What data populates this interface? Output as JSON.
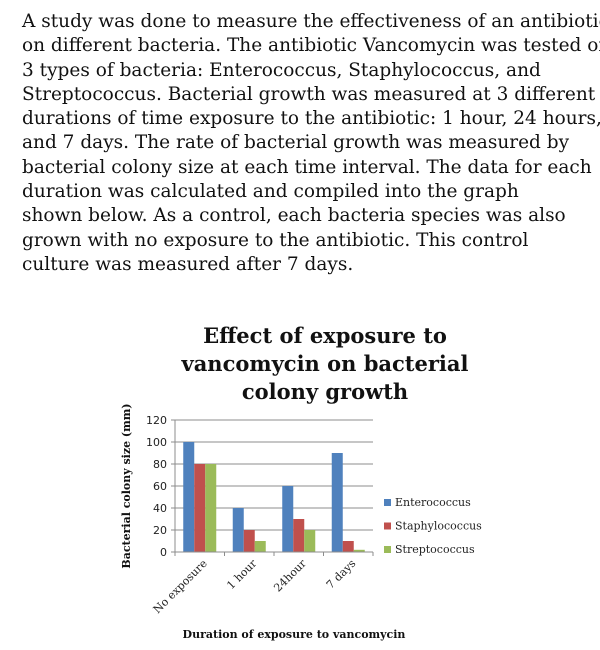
{
  "passage": {
    "lines": [
      "A study was done to measure the effectiveness of an antibiotic",
      "on different bacteria. The antibiotic Vancomycin was tested on",
      "3 types of bacteria: Enterococcus, Staphylococcus, and",
      "Streptococcus. Bacterial growth was measured at 3 different",
      "durations of time exposure to the antibiotic: 1 hour, 24 hours,",
      "and 7 days. The rate of bacterial growth was measured by",
      "bacterial colony size at each time interval. The data for each",
      "duration was calculated and compiled into the graph",
      "shown below. As a control, each bacteria species was also",
      "grown with no exposure to the antibiotic. This control",
      "culture was measured after 7 days."
    ]
  },
  "chart_data": {
    "type": "bar",
    "title_lines": [
      "Effect of exposure to",
      "vancomycin on bacterial",
      "colony growth"
    ],
    "categories": [
      "No exposure",
      "1 hour",
      "24hour",
      "7 days"
    ],
    "series": [
      {
        "name": "Enterococcus",
        "values": [
          100,
          40,
          60,
          90
        ],
        "color": "#4F81BD"
      },
      {
        "name": "Staphylococcus",
        "values": [
          80,
          20,
          30,
          10
        ],
        "color": "#C0504D"
      },
      {
        "name": "Streptococcus",
        "values": [
          80,
          10,
          20,
          2
        ],
        "color": "#9BBB59"
      }
    ],
    "ylabel": "Bacterial colony size (mm)",
    "xlabel": "Duration of exposure to vancomycin",
    "ylim": [
      0,
      120
    ],
    "yticks": [
      "0",
      "20",
      "40",
      "60",
      "80",
      "100",
      "120"
    ],
    "grid": true,
    "legend_position": "right"
  }
}
